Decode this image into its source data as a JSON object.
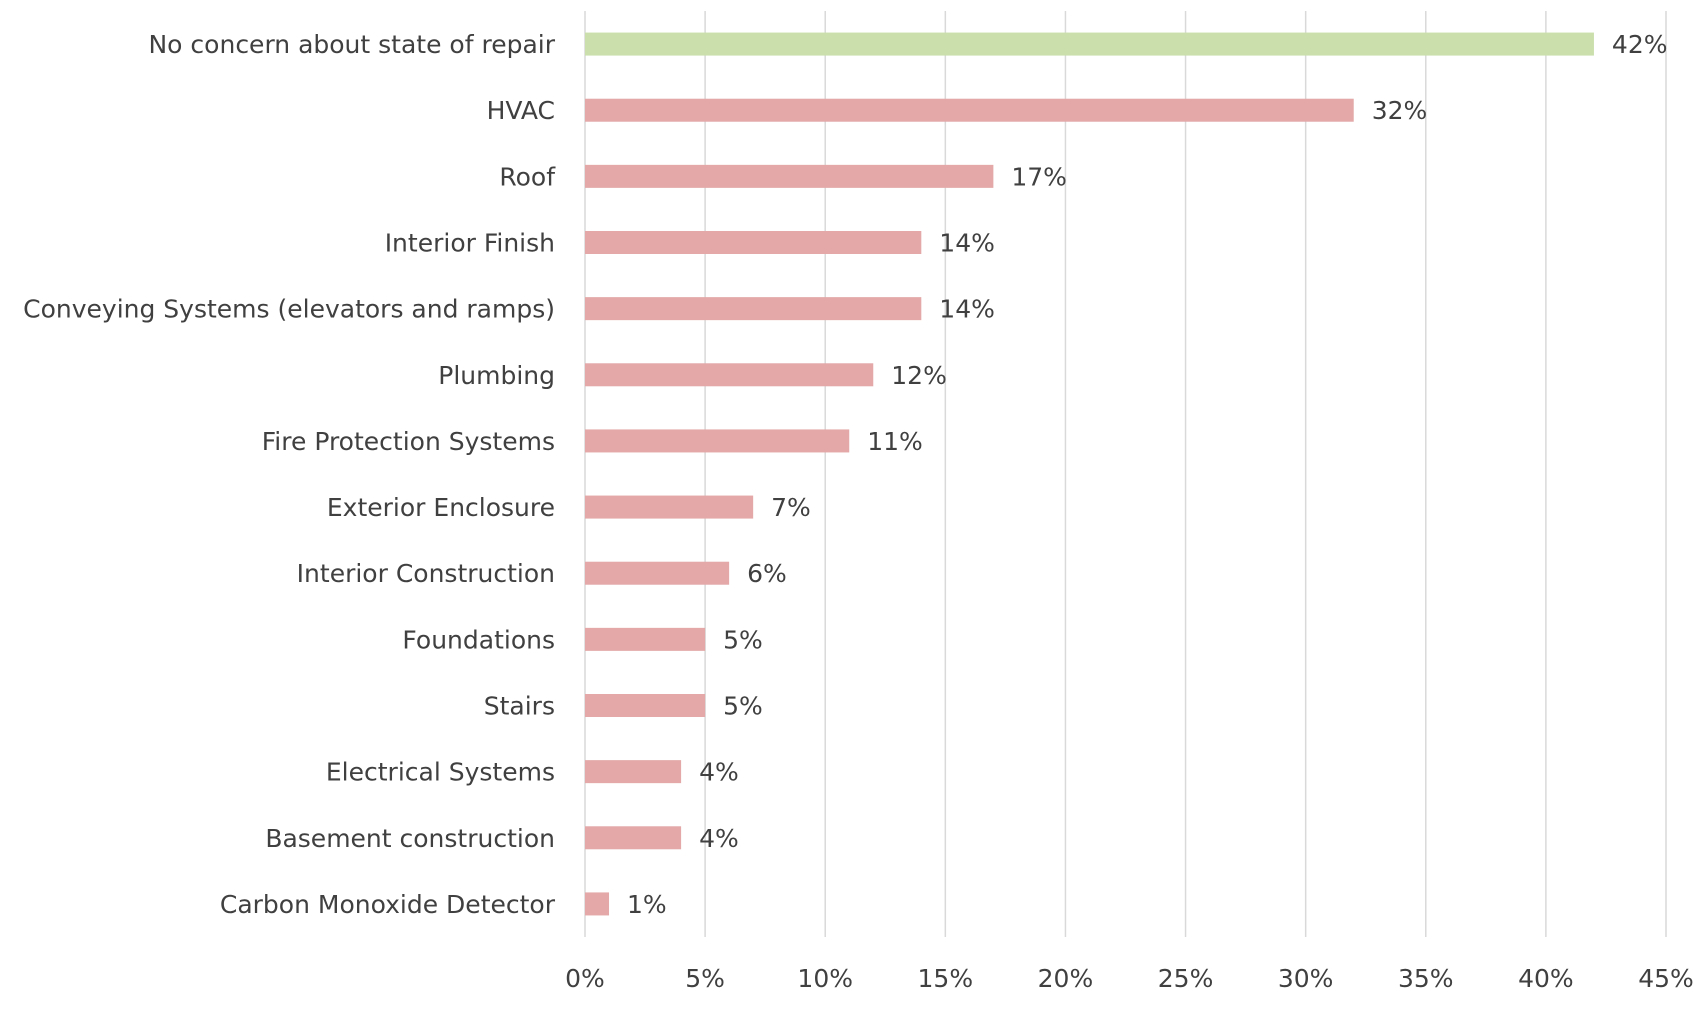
{
  "chart_data": {
    "type": "hbar",
    "categories": [
      "No concern about state of repair",
      "HVAC",
      "Roof",
      "Interior Finish",
      "Conveying Systems (elevators and ramps)",
      "Plumbing",
      "Fire Protection Systems",
      "Exterior Enclosure",
      "Interior Construction",
      "Foundations",
      "Stairs",
      "Electrical Systems",
      "Basement construction",
      "Carbon Monoxide Detector"
    ],
    "values": [
      42,
      32,
      17,
      14,
      14,
      12,
      11,
      7,
      6,
      5,
      5,
      4,
      4,
      1
    ],
    "value_labels": [
      "42%",
      "32%",
      "17%",
      "14%",
      "14%",
      "12%",
      "11%",
      "7%",
      "6%",
      "5%",
      "5%",
      "4%",
      "4%",
      "1%"
    ],
    "colors": [
      "#cadfab",
      "#e3a8a7",
      "#e3a8a7",
      "#e3a8a7",
      "#e3a8a7",
      "#e3a8a7",
      "#e3a8a7",
      "#e3a8a7",
      "#e3a8a7",
      "#e3a8a7",
      "#e3a8a7",
      "#e3a8a7",
      "#e3a8a7",
      "#e3a8a7"
    ],
    "xlim": [
      0,
      45
    ],
    "xticks": [
      {
        "value": 0,
        "label": "0%"
      },
      {
        "value": 5,
        "label": "5%"
      },
      {
        "value": 10,
        "label": "10%"
      },
      {
        "value": 15,
        "label": "15%"
      },
      {
        "value": 20,
        "label": "20%"
      },
      {
        "value": 25,
        "label": "25%"
      },
      {
        "value": 30,
        "label": "30%"
      },
      {
        "value": 35,
        "label": "35%"
      },
      {
        "value": 40,
        "label": "40%"
      },
      {
        "value": 45,
        "label": "45%"
      }
    ],
    "grid": true
  }
}
